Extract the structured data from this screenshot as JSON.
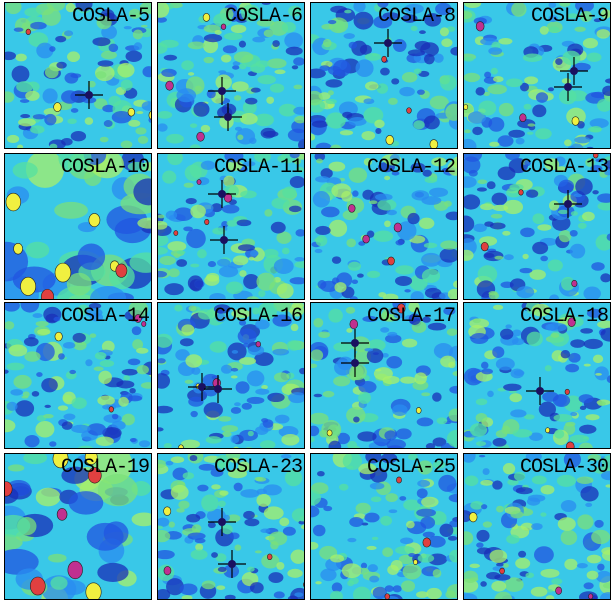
{
  "panels": [
    {
      "label": "COSLA-5"
    },
    {
      "label": "COSLA-6"
    },
    {
      "label": "COSLA-8"
    },
    {
      "label": "COSLA-9"
    },
    {
      "label": "COSLA-10"
    },
    {
      "label": "COSLA-11"
    },
    {
      "label": "COSLA-12"
    },
    {
      "label": "COSLA-13"
    },
    {
      "label": "COSLA-14"
    },
    {
      "label": "COSLA-16"
    },
    {
      "label": "COSLA-17"
    },
    {
      "label": "COSLA-18"
    },
    {
      "label": "COSLA-19"
    },
    {
      "label": "COSLA-23"
    },
    {
      "label": "COSLA-25"
    },
    {
      "label": "COSLA-30"
    }
  ]
}
